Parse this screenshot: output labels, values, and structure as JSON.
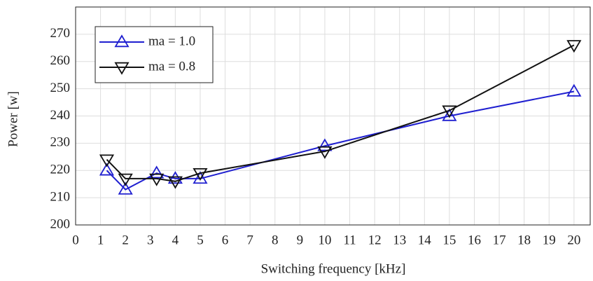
{
  "chart_data": {
    "type": "line",
    "x_label": "Switching frequency [kHz]",
    "y_label": "Power [w]",
    "x": [
      1.25,
      2,
      3.25,
      4,
      5,
      10,
      15,
      20
    ],
    "series": [
      {
        "name": "ma = 1.0",
        "color": "#1f1fd0",
        "marker": "triangle-up",
        "values": [
          220,
          213,
          219,
          217,
          217,
          229,
          240,
          249
        ]
      },
      {
        "name": "ma = 0.8",
        "color": "#111111",
        "marker": "triangle-down",
        "values": [
          224,
          217,
          217,
          216,
          219,
          227,
          242,
          266
        ]
      }
    ],
    "xlim": [
      0,
      20.65
    ],
    "xticks": [
      0,
      1,
      2,
      3,
      4,
      5,
      6,
      7,
      8,
      9,
      10,
      11,
      12,
      13,
      14,
      15,
      16,
      17,
      18,
      19,
      20
    ],
    "ylim": [
      200,
      280
    ],
    "yticks": [
      200,
      210,
      220,
      230,
      240,
      250,
      260,
      270
    ],
    "grid": true,
    "legend": "upper left"
  }
}
